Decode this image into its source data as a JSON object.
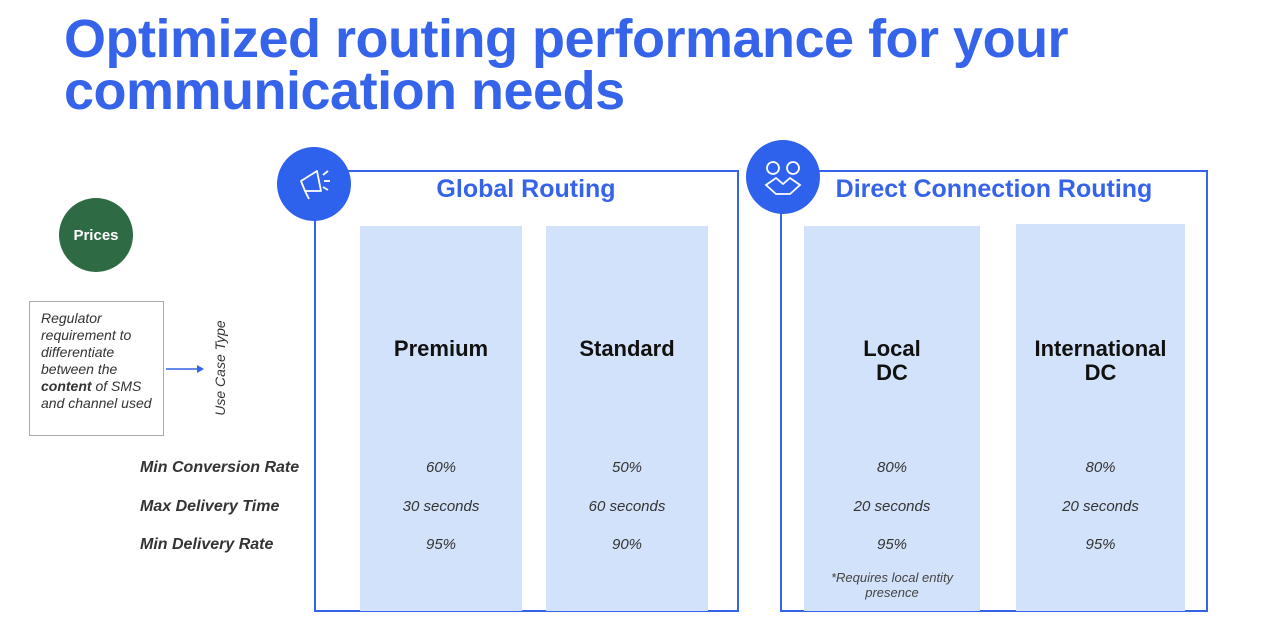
{
  "title_lines": [
    "Optimized routing performance for your",
    "communication needs"
  ],
  "prices": "Prices",
  "note": {
    "before": "Regulator requirement to differentiate between the ",
    "bold": "content",
    "after": " of SMS and channel used"
  },
  "axis_label": "Use Case Type",
  "row_labels": [
    "Min Conversion Rate",
    "Max Delivery Time",
    "Min Delivery Rate"
  ],
  "groups": [
    {
      "title": "Global Routing",
      "columns": [
        {
          "name_lines": [
            "Premium"
          ],
          "values": [
            "60%",
            "30 seconds",
            "95%"
          ]
        },
        {
          "name_lines": [
            "Standard"
          ],
          "values": [
            "50%",
            "60 seconds",
            "90%"
          ]
        }
      ]
    },
    {
      "title": "Direct Connection Routing",
      "columns": [
        {
          "name_lines": [
            "Local",
            "DC"
          ],
          "values": [
            "80%",
            "20 seconds",
            "95%"
          ],
          "footnote": "*Requires local entity presence"
        },
        {
          "name_lines": [
            "International",
            "DC"
          ],
          "values": [
            "80%",
            "20 seconds",
            "95%"
          ]
        }
      ]
    }
  ]
}
